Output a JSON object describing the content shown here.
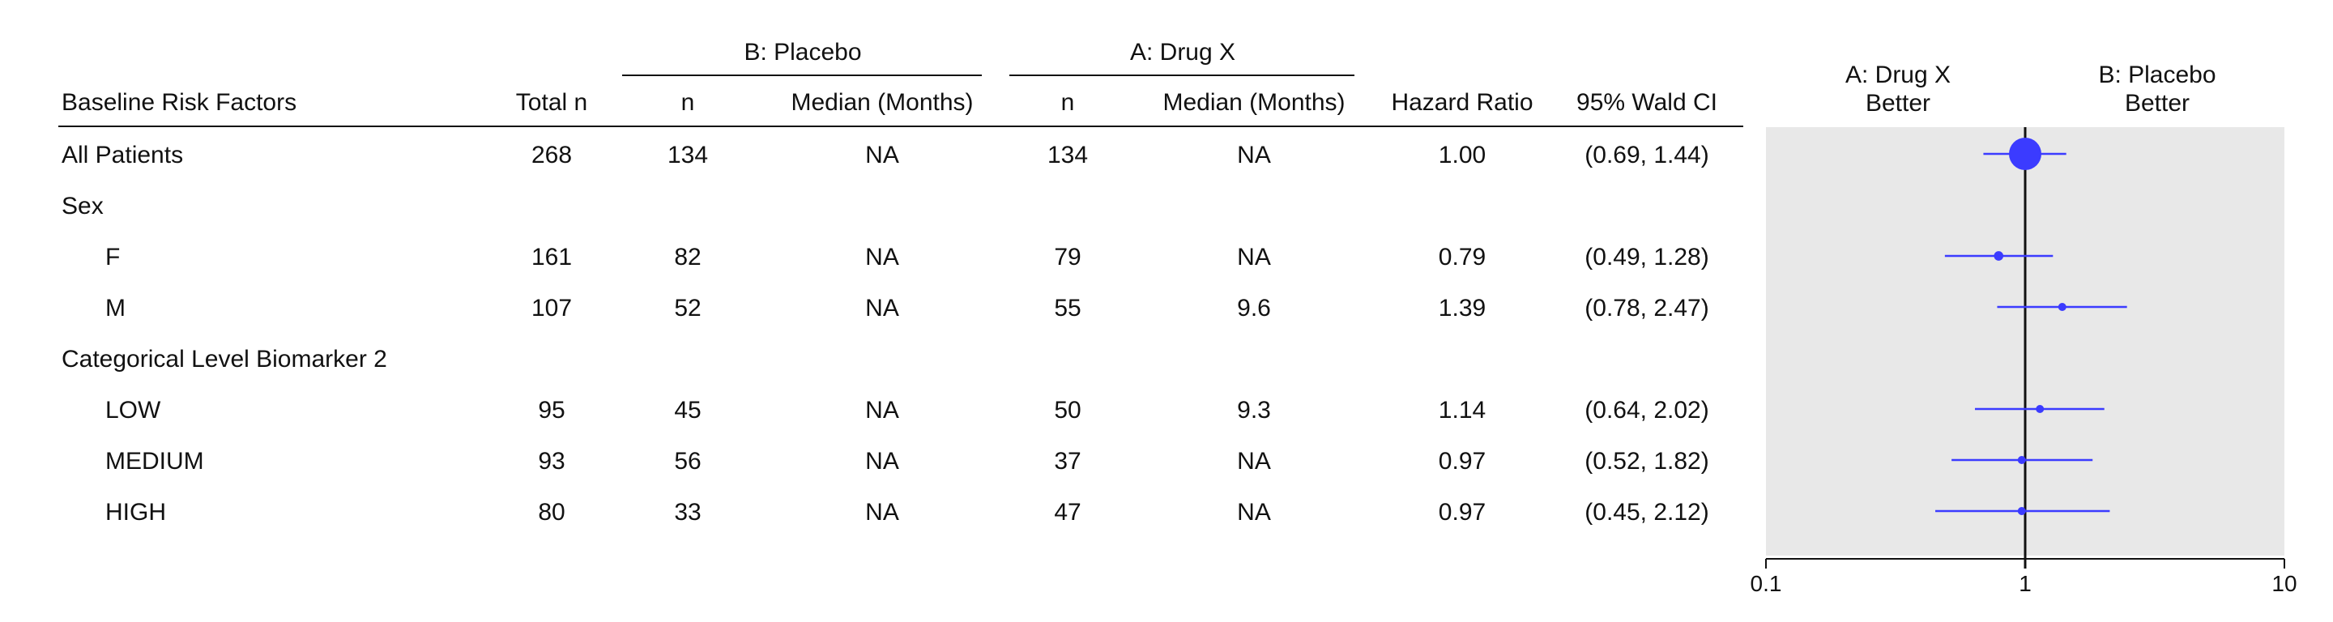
{
  "table": {
    "headers": {
      "group_b": "B: Placebo",
      "group_a": "A: Drug X",
      "factor": "Baseline Risk Factors",
      "total_n": "Total n",
      "b_n": "n",
      "b_median": "Median (Months)",
      "a_n": "n",
      "a_median": "Median (Months)",
      "hr": "Hazard Ratio",
      "ci": "95% Wald CI"
    },
    "rows": [
      {
        "label": "All Patients",
        "indent": false,
        "total": "268",
        "b_n": "134",
        "b_med": "NA",
        "a_n": "134",
        "a_med": "NA",
        "hr": "1.00",
        "ci": "(0.69, 1.44)"
      },
      {
        "label": "Sex",
        "indent": false,
        "total": "",
        "b_n": "",
        "b_med": "",
        "a_n": "",
        "a_med": "",
        "hr": "",
        "ci": ""
      },
      {
        "label": "F",
        "indent": true,
        "total": "161",
        "b_n": "82",
        "b_med": "NA",
        "a_n": "79",
        "a_med": "NA",
        "hr": "0.79",
        "ci": "(0.49, 1.28)"
      },
      {
        "label": "M",
        "indent": true,
        "total": "107",
        "b_n": "52",
        "b_med": "NA",
        "a_n": "55",
        "a_med": "9.6",
        "hr": "1.39",
        "ci": "(0.78, 2.47)"
      },
      {
        "label": "Categorical Level Biomarker 2",
        "indent": false,
        "total": "",
        "b_n": "",
        "b_med": "",
        "a_n": "",
        "a_med": "",
        "hr": "",
        "ci": ""
      },
      {
        "label": "LOW",
        "indent": true,
        "total": "95",
        "b_n": "45",
        "b_med": "NA",
        "a_n": "50",
        "a_med": "9.3",
        "hr": "1.14",
        "ci": "(0.64, 2.02)"
      },
      {
        "label": "MEDIUM",
        "indent": true,
        "total": "93",
        "b_n": "56",
        "b_med": "NA",
        "a_n": "37",
        "a_med": "NA",
        "hr": "0.97",
        "ci": "(0.52, 1.82)"
      },
      {
        "label": "HIGH",
        "indent": true,
        "total": "80",
        "b_n": "33",
        "b_med": "NA",
        "a_n": "47",
        "a_med": "NA",
        "hr": "0.97",
        "ci": "(0.45, 2.12)"
      }
    ]
  },
  "chart_data": {
    "type": "forest",
    "x_scale": "log",
    "xlim": [
      0.1,
      10
    ],
    "reference_line": 1,
    "ticks": [
      "0.1",
      "1",
      "10"
    ],
    "label_left": [
      "A: Drug X",
      "Better"
    ],
    "label_right": [
      "B: Placebo",
      "Better"
    ],
    "points": [
      {
        "row": 0,
        "hr": 1.0,
        "lower": 0.69,
        "upper": 1.44,
        "n": 268
      },
      {
        "row": 2,
        "hr": 0.79,
        "lower": 0.49,
        "upper": 1.28,
        "n": 161
      },
      {
        "row": 3,
        "hr": 1.39,
        "lower": 0.78,
        "upper": 2.47,
        "n": 107
      },
      {
        "row": 5,
        "hr": 1.14,
        "lower": 0.64,
        "upper": 2.02,
        "n": 95
      },
      {
        "row": 6,
        "hr": 0.97,
        "lower": 0.52,
        "upper": 1.82,
        "n": 93
      },
      {
        "row": 7,
        "hr": 0.97,
        "lower": 0.45,
        "upper": 2.12,
        "n": 80
      }
    ],
    "colors": {
      "marker": "#3b3bff",
      "panel": "#e8e8e8",
      "axis": "#111111"
    }
  }
}
